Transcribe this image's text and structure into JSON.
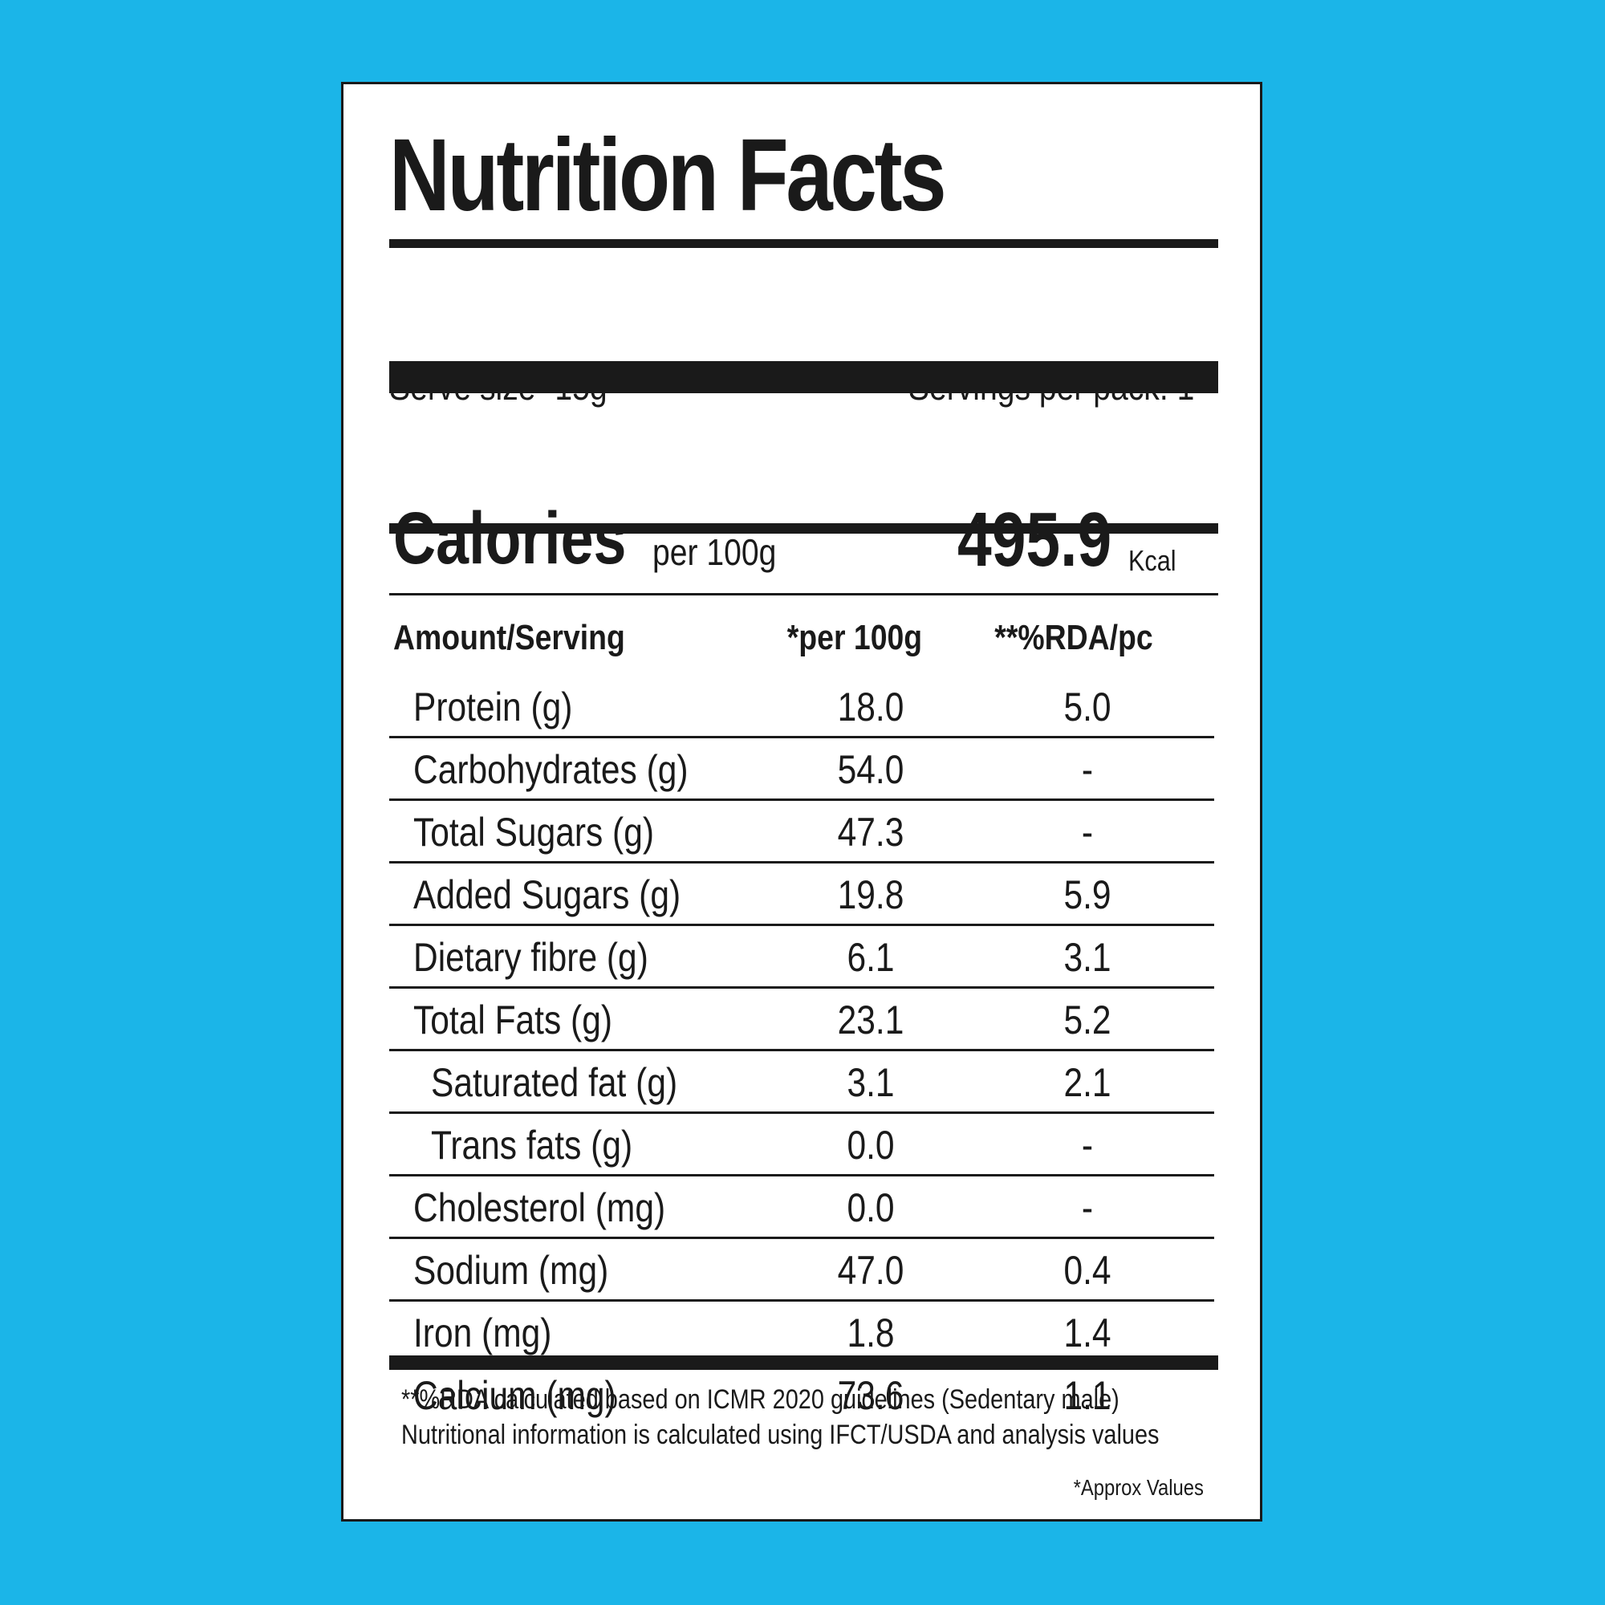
{
  "label": {
    "title": "Nutrition Facts",
    "serve_size": "Serve size -15g",
    "servings_per_pack": "Servings per pack: 1",
    "calories": {
      "label": "Calories",
      "basis": "per 100g",
      "value": "495.9",
      "unit": "Kcal"
    },
    "table": {
      "headers": [
        "Amount/Serving",
        "*per 100g",
        "**%RDA/pc"
      ],
      "rows": [
        {
          "name": "Protein (g)",
          "per100g": "18.0",
          "rda": "5.0"
        },
        {
          "name": "Carbohydrates (g)",
          "per100g": "54.0",
          "rda": "-"
        },
        {
          "name": "Total Sugars (g)",
          "per100g": "47.3",
          "rda": "-"
        },
        {
          "name": "Added Sugars (g)",
          "per100g": "19.8",
          "rda": "5.9"
        },
        {
          "name": "Dietary fibre (g)",
          "per100g": "6.1",
          "rda": "3.1"
        },
        {
          "name": "Total Fats (g)",
          "per100g": "23.1",
          "rda": "5.2"
        },
        {
          "name": "Saturated fat (g)",
          "per100g": "3.1",
          "rda": "2.1"
        },
        {
          "name": "Trans fats (g)",
          "per100g": "0.0",
          "rda": "-"
        },
        {
          "name": "Cholesterol (mg)",
          "per100g": "0.0",
          "rda": "-"
        },
        {
          "name": "Sodium (mg)",
          "per100g": "47.0",
          "rda": "0.4"
        },
        {
          "name": "Iron (mg)",
          "per100g": "1.8",
          "rda": "1.4"
        },
        {
          "name": "Calcium (mg)",
          "per100g": "73.6",
          "rda": "1.1"
        }
      ]
    },
    "footnotes": [
      "**%RDA calculated based on ICMR 2020 guidelines (Sedentary male)",
      "Nutritional information is calculated using IFCT/USDA and analysis values"
    ],
    "approx_note": "*Approx Values"
  },
  "colors": {
    "background": "#1bb5e8",
    "panel": "#ffffff",
    "ink": "#1a1a1a"
  }
}
